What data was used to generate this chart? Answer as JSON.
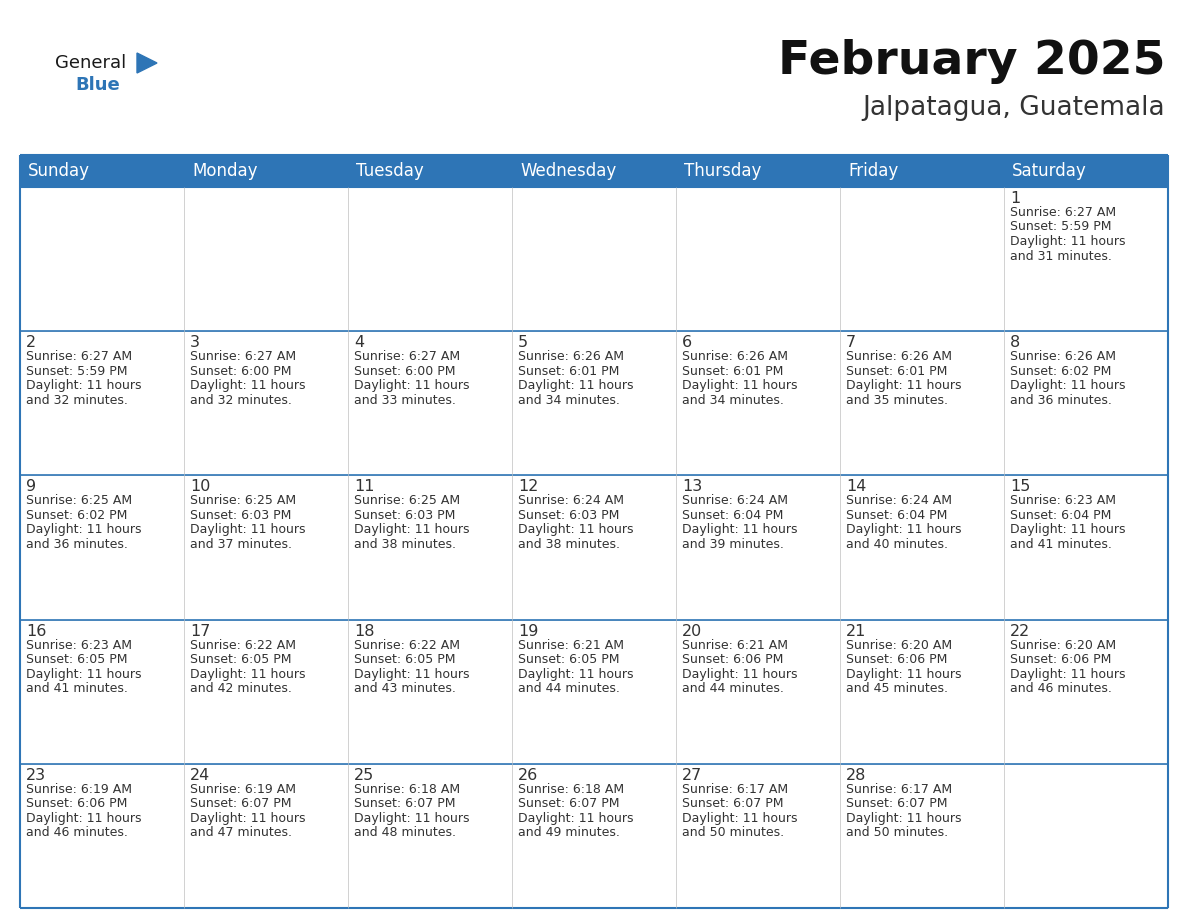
{
  "title": "February 2025",
  "subtitle": "Jalpatagua, Guatemala",
  "header_color": "#2E75B6",
  "header_text_color": "#FFFFFF",
  "border_color": "#2E75B6",
  "cell_border_color": "#CCCCCC",
  "text_color": "#333333",
  "day_headers": [
    "Sunday",
    "Monday",
    "Tuesday",
    "Wednesday",
    "Thursday",
    "Friday",
    "Saturday"
  ],
  "logo_color": "#2E75B6",
  "logo_black": "#1a1a1a",
  "calendar_data": [
    [
      {
        "day": "",
        "sunrise": "",
        "sunset": "",
        "daylight": ""
      },
      {
        "day": "",
        "sunrise": "",
        "sunset": "",
        "daylight": ""
      },
      {
        "day": "",
        "sunrise": "",
        "sunset": "",
        "daylight": ""
      },
      {
        "day": "",
        "sunrise": "",
        "sunset": "",
        "daylight": ""
      },
      {
        "day": "",
        "sunrise": "",
        "sunset": "",
        "daylight": ""
      },
      {
        "day": "",
        "sunrise": "",
        "sunset": "",
        "daylight": ""
      },
      {
        "day": "1",
        "sunrise": "6:27 AM",
        "sunset": "5:59 PM",
        "daylight": "11 hours",
        "daylight2": "and 31 minutes."
      }
    ],
    [
      {
        "day": "2",
        "sunrise": "6:27 AM",
        "sunset": "5:59 PM",
        "daylight": "11 hours",
        "daylight2": "and 32 minutes."
      },
      {
        "day": "3",
        "sunrise": "6:27 AM",
        "sunset": "6:00 PM",
        "daylight": "11 hours",
        "daylight2": "and 32 minutes."
      },
      {
        "day": "4",
        "sunrise": "6:27 AM",
        "sunset": "6:00 PM",
        "daylight": "11 hours",
        "daylight2": "and 33 minutes."
      },
      {
        "day": "5",
        "sunrise": "6:26 AM",
        "sunset": "6:01 PM",
        "daylight": "11 hours",
        "daylight2": "and 34 minutes."
      },
      {
        "day": "6",
        "sunrise": "6:26 AM",
        "sunset": "6:01 PM",
        "daylight": "11 hours",
        "daylight2": "and 34 minutes."
      },
      {
        "day": "7",
        "sunrise": "6:26 AM",
        "sunset": "6:01 PM",
        "daylight": "11 hours",
        "daylight2": "and 35 minutes."
      },
      {
        "day": "8",
        "sunrise": "6:26 AM",
        "sunset": "6:02 PM",
        "daylight": "11 hours",
        "daylight2": "and 36 minutes."
      }
    ],
    [
      {
        "day": "9",
        "sunrise": "6:25 AM",
        "sunset": "6:02 PM",
        "daylight": "11 hours",
        "daylight2": "and 36 minutes."
      },
      {
        "day": "10",
        "sunrise": "6:25 AM",
        "sunset": "6:03 PM",
        "daylight": "11 hours",
        "daylight2": "and 37 minutes."
      },
      {
        "day": "11",
        "sunrise": "6:25 AM",
        "sunset": "6:03 PM",
        "daylight": "11 hours",
        "daylight2": "and 38 minutes."
      },
      {
        "day": "12",
        "sunrise": "6:24 AM",
        "sunset": "6:03 PM",
        "daylight": "11 hours",
        "daylight2": "and 38 minutes."
      },
      {
        "day": "13",
        "sunrise": "6:24 AM",
        "sunset": "6:04 PM",
        "daylight": "11 hours",
        "daylight2": "and 39 minutes."
      },
      {
        "day": "14",
        "sunrise": "6:24 AM",
        "sunset": "6:04 PM",
        "daylight": "11 hours",
        "daylight2": "and 40 minutes."
      },
      {
        "day": "15",
        "sunrise": "6:23 AM",
        "sunset": "6:04 PM",
        "daylight": "11 hours",
        "daylight2": "and 41 minutes."
      }
    ],
    [
      {
        "day": "16",
        "sunrise": "6:23 AM",
        "sunset": "6:05 PM",
        "daylight": "11 hours",
        "daylight2": "and 41 minutes."
      },
      {
        "day": "17",
        "sunrise": "6:22 AM",
        "sunset": "6:05 PM",
        "daylight": "11 hours",
        "daylight2": "and 42 minutes."
      },
      {
        "day": "18",
        "sunrise": "6:22 AM",
        "sunset": "6:05 PM",
        "daylight": "11 hours",
        "daylight2": "and 43 minutes."
      },
      {
        "day": "19",
        "sunrise": "6:21 AM",
        "sunset": "6:05 PM",
        "daylight": "11 hours",
        "daylight2": "and 44 minutes."
      },
      {
        "day": "20",
        "sunrise": "6:21 AM",
        "sunset": "6:06 PM",
        "daylight": "11 hours",
        "daylight2": "and 44 minutes."
      },
      {
        "day": "21",
        "sunrise": "6:20 AM",
        "sunset": "6:06 PM",
        "daylight": "11 hours",
        "daylight2": "and 45 minutes."
      },
      {
        "day": "22",
        "sunrise": "6:20 AM",
        "sunset": "6:06 PM",
        "daylight": "11 hours",
        "daylight2": "and 46 minutes."
      }
    ],
    [
      {
        "day": "23",
        "sunrise": "6:19 AM",
        "sunset": "6:06 PM",
        "daylight": "11 hours",
        "daylight2": "and 46 minutes."
      },
      {
        "day": "24",
        "sunrise": "6:19 AM",
        "sunset": "6:07 PM",
        "daylight": "11 hours",
        "daylight2": "and 47 minutes."
      },
      {
        "day": "25",
        "sunrise": "6:18 AM",
        "sunset": "6:07 PM",
        "daylight": "11 hours",
        "daylight2": "and 48 minutes."
      },
      {
        "day": "26",
        "sunrise": "6:18 AM",
        "sunset": "6:07 PM",
        "daylight": "11 hours",
        "daylight2": "and 49 minutes."
      },
      {
        "day": "27",
        "sunrise": "6:17 AM",
        "sunset": "6:07 PM",
        "daylight": "11 hours",
        "daylight2": "and 50 minutes."
      },
      {
        "day": "28",
        "sunrise": "6:17 AM",
        "sunset": "6:07 PM",
        "daylight": "11 hours",
        "daylight2": "and 50 minutes."
      },
      {
        "day": "",
        "sunrise": "",
        "sunset": "",
        "daylight": "",
        "daylight2": ""
      }
    ]
  ]
}
